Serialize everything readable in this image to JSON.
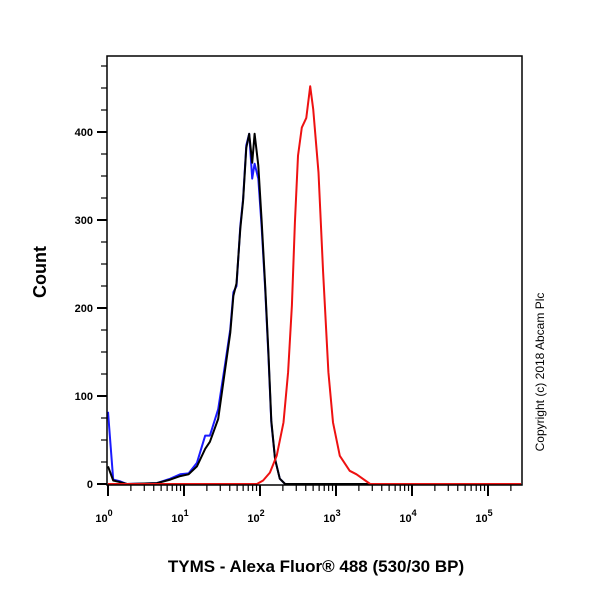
{
  "chart_data": {
    "type": "line",
    "title": "",
    "xlabel": "TYMS - Alexa Fluor® 488 (530/30 BP)",
    "ylabel": "Count",
    "xscale": "log",
    "xlim": [
      1,
      280000
    ],
    "ylim": [
      0,
      490
    ],
    "x_tick_labels": [
      {
        "base": "10",
        "exp": "0",
        "value": 1
      },
      {
        "base": "10",
        "exp": "1",
        "value": 10
      },
      {
        "base": "10",
        "exp": "2",
        "value": 100
      },
      {
        "base": "10",
        "exp": "3",
        "value": 1000
      },
      {
        "base": "10",
        "exp": "4",
        "value": 10000
      },
      {
        "base": "10",
        "exp": "5",
        "value": 100000
      }
    ],
    "y_ticks": [
      0,
      100,
      200,
      300,
      400
    ],
    "grid": false,
    "legend": "none",
    "annotation": "Copyright (c) 2018 Abcam Plc",
    "series": [
      {
        "color": "#1a1aff",
        "x": [
          1.0,
          1.17,
          1.45,
          1.78,
          4.4,
          6.6,
          8.9,
          11.5,
          14.8,
          19,
          21.9,
          28.2,
          34.7,
          40.7,
          44.7,
          49,
          55,
          60,
          66,
          72,
          79,
          85,
          95,
          105,
          117,
          129,
          141,
          158,
          182,
          214,
          280000
        ],
        "y": [
          82,
          5,
          3,
          0,
          1,
          6,
          11,
          12,
          24,
          55,
          55,
          85,
          136,
          176,
          218,
          225,
          293,
          324,
          385,
          398,
          347,
          364,
          347,
          293,
          221,
          146,
          70,
          28,
          6,
          0,
          0
        ]
      },
      {
        "color": "#000000",
        "x": [
          1.0,
          1.17,
          1.45,
          1.78,
          4.4,
          6.6,
          8.9,
          11.5,
          14.8,
          19,
          21.9,
          28.2,
          34.7,
          40.7,
          44.7,
          49,
          55,
          60,
          66,
          72,
          79,
          85,
          95,
          105,
          117,
          129,
          141,
          158,
          182,
          214,
          280000
        ],
        "y": [
          20,
          4,
          2,
          0,
          1,
          5,
          9,
          11,
          20,
          40,
          48,
          74,
          130,
          172,
          214,
          228,
          290,
          322,
          382,
          398,
          365,
          398,
          362,
          300,
          225,
          150,
          72,
          28,
          6,
          0,
          0
        ]
      },
      {
        "color": "#ee1111",
        "x": [
          1,
          91,
          110,
          135,
          166,
          204,
          234,
          263,
          288,
          316,
          355,
          407,
          457,
          501,
          589,
          676,
          794,
          912,
          1122,
          1514,
          1862,
          2818,
          280000
        ],
        "y": [
          0,
          0,
          4,
          13,
          32,
          70,
          127,
          203,
          297,
          373,
          405,
          416,
          452,
          426,
          354,
          241,
          127,
          70,
          32,
          15,
          11,
          0,
          0
        ]
      }
    ]
  }
}
